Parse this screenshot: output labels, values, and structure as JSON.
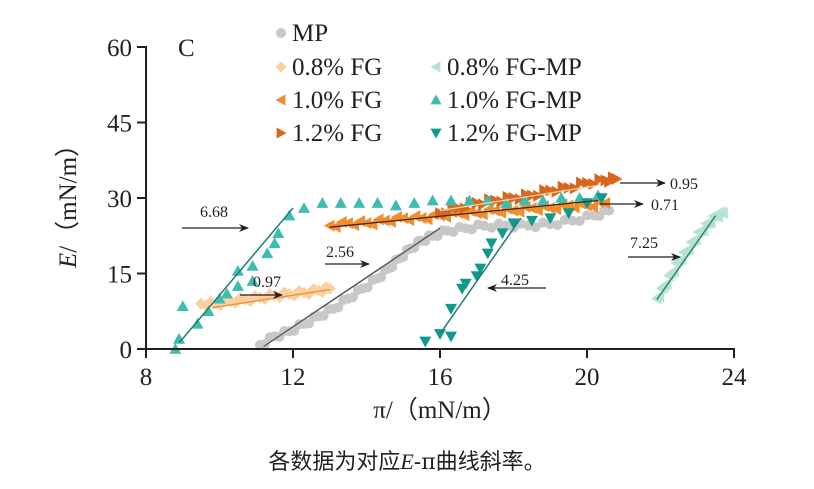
{
  "chart_data": {
    "type": "scatter",
    "panel_label": "C",
    "xlabel": "π/（mN/m）",
    "ylabel_italic": "E",
    "ylabel_rest": "/（mN/m）",
    "xlim": [
      8,
      24
    ],
    "ylim": [
      0,
      60
    ],
    "xticks": [
      8,
      12,
      16,
      20,
      24
    ],
    "yticks": [
      0,
      15,
      30,
      45,
      60
    ],
    "grid": false,
    "legend_position": "top-center",
    "legend": [
      {
        "name": "MP",
        "marker": "circle",
        "color": "#c8c8c8"
      },
      {
        "name": "0.8% FG",
        "marker": "diamond",
        "color": "#fbcf9f"
      },
      {
        "name": "1.0% FG",
        "marker": "triangle-left",
        "color": "#f28c2c"
      },
      {
        "name": "1.2% FG",
        "marker": "triangle-right",
        "color": "#d9661f"
      },
      {
        "name": "0.8% FG-MP",
        "marker": "triangle-left",
        "color": "#b3e3d3"
      },
      {
        "name": "1.0% FG-MP",
        "marker": "triangle-up",
        "color": "#3dbcb0"
      },
      {
        "name": "1.2% FG-MP",
        "marker": "triangle-down",
        "color": "#109a8c"
      }
    ],
    "series": [
      {
        "name": "MP",
        "color": "#c8c8c8",
        "marker": "circle",
        "points": [
          [
            11.1,
            0.8
          ],
          [
            11.5,
            2.5
          ],
          [
            11.9,
            3.5
          ],
          [
            12.3,
            5
          ],
          [
            12.7,
            6.5
          ],
          [
            13.1,
            8
          ],
          [
            13.5,
            10
          ],
          [
            13.9,
            12
          ],
          [
            14.3,
            14
          ],
          [
            14.6,
            16
          ],
          [
            14.9,
            18
          ],
          [
            15.2,
            20
          ],
          [
            15.5,
            21.5
          ],
          [
            15.8,
            22.5
          ],
          [
            16.2,
            23.5
          ],
          [
            16.7,
            24
          ],
          [
            17.2,
            24.5
          ],
          [
            17.8,
            24.5
          ],
          [
            18.4,
            24.5
          ],
          [
            19.0,
            24.8
          ],
          [
            19.6,
            25.5
          ],
          [
            20.2,
            26.5
          ],
          [
            20.6,
            27.5
          ]
        ]
      },
      {
        "name": "0.8% FG",
        "color": "#fbcf9f",
        "marker": "diamond",
        "points": [
          [
            9.5,
            9
          ],
          [
            9.9,
            9
          ],
          [
            10.3,
            9.5
          ],
          [
            10.7,
            9.8
          ],
          [
            11.1,
            10.2
          ],
          [
            11.5,
            10.6
          ],
          [
            11.9,
            10.9
          ],
          [
            12.3,
            11.2
          ],
          [
            12.7,
            11.6
          ],
          [
            13.0,
            12
          ]
        ]
      },
      {
        "name": "1.0% FG",
        "color": "#f28c2c",
        "marker": "triangle-left",
        "points": [
          [
            13.0,
            24.5
          ],
          [
            13.5,
            25
          ],
          [
            14.0,
            25
          ],
          [
            14.5,
            25.5
          ],
          [
            15.0,
            26
          ],
          [
            15.5,
            26
          ],
          [
            16.0,
            26.5
          ],
          [
            16.5,
            27
          ],
          [
            17.0,
            27
          ],
          [
            17.5,
            27.5
          ],
          [
            18.0,
            27.5
          ],
          [
            18.5,
            28
          ],
          [
            19.0,
            28
          ],
          [
            19.5,
            28.5
          ],
          [
            20.0,
            28.5
          ],
          [
            20.5,
            29
          ]
        ]
      },
      {
        "name": "1.2% FG",
        "color": "#d9661f",
        "marker": "triangle-right",
        "points": [
          [
            16.0,
            27
          ],
          [
            16.5,
            28
          ],
          [
            17.0,
            29
          ],
          [
            17.5,
            29.5
          ],
          [
            18.0,
            30
          ],
          [
            18.5,
            30.5
          ],
          [
            19.0,
            31.5
          ],
          [
            19.5,
            32
          ],
          [
            20.0,
            33
          ],
          [
            20.5,
            33.5
          ],
          [
            20.8,
            33.8
          ]
        ]
      },
      {
        "name": "0.8% FG-MP",
        "color": "#b3e3d3",
        "marker": "triangle-left",
        "points": [
          [
            21.9,
            10
          ],
          [
            22.1,
            12.5
          ],
          [
            22.3,
            15
          ],
          [
            22.5,
            17.5
          ],
          [
            22.7,
            19.5
          ],
          [
            22.9,
            21.5
          ],
          [
            23.1,
            23.5
          ],
          [
            23.3,
            25
          ],
          [
            23.5,
            26.5
          ],
          [
            23.7,
            27
          ]
        ]
      },
      {
        "name": "1.0% FG-MP",
        "color": "#3dbcb0",
        "marker": "triangle-up",
        "points": [
          [
            8.8,
            0
          ],
          [
            8.9,
            2
          ],
          [
            9.0,
            8.5
          ],
          [
            9.4,
            5
          ],
          [
            9.7,
            7.5
          ],
          [
            10.0,
            10
          ],
          [
            10.2,
            11
          ],
          [
            10.5,
            12.5
          ],
          [
            10.5,
            15.5
          ],
          [
            10.9,
            16.5
          ],
          [
            10.9,
            13.5
          ],
          [
            11.3,
            19
          ],
          [
            11.5,
            21
          ],
          [
            11.6,
            23
          ],
          [
            11.9,
            26.5
          ],
          [
            12.3,
            28
          ],
          [
            12.8,
            29
          ],
          [
            13.3,
            29
          ],
          [
            13.8,
            29
          ],
          [
            14.3,
            29
          ],
          [
            14.8,
            28.5
          ],
          [
            15.3,
            29
          ],
          [
            15.8,
            29.5
          ],
          [
            16.3,
            29.5
          ],
          [
            16.8,
            29.5
          ],
          [
            17.3,
            29.5
          ],
          [
            17.8,
            29
          ],
          [
            18.3,
            29.5
          ],
          [
            18.8,
            29.5
          ],
          [
            19.3,
            30
          ],
          [
            19.8,
            30
          ],
          [
            20.3,
            30.5
          ]
        ]
      },
      {
        "name": "1.2% FG-MP",
        "color": "#109a8c",
        "marker": "triangle-down",
        "points": [
          [
            15.6,
            1.5
          ],
          [
            16.0,
            3
          ],
          [
            16.3,
            2.5
          ],
          [
            16.3,
            8
          ],
          [
            16.6,
            12
          ],
          [
            16.7,
            13
          ],
          [
            17.0,
            14.5
          ],
          [
            17.1,
            16
          ],
          [
            17.3,
            19
          ],
          [
            17.4,
            21
          ],
          [
            17.7,
            23
          ],
          [
            18.0,
            25
          ],
          [
            18.5,
            25.5
          ],
          [
            19.0,
            26
          ],
          [
            19.5,
            27
          ],
          [
            20.0,
            29
          ],
          [
            20.4,
            30
          ]
        ]
      }
    ],
    "fit_lines": [
      {
        "series": "1.0% FG-MP",
        "slope_label": "6.68",
        "color": "#1f7a73",
        "from": [
          8.9,
          1.2
        ],
        "to": [
          12.0,
          28
        ]
      },
      {
        "series": "0.8% FG",
        "slope_label": "0.97",
        "color": "#f28c2c",
        "from": [
          9.8,
          8.2
        ],
        "to": [
          13.0,
          11.8
        ]
      },
      {
        "series": "MP",
        "slope_label": "2.56",
        "color": "#555555",
        "from": [
          11.2,
          0.5
        ],
        "to": [
          16.0,
          24
        ]
      },
      {
        "series": "1.2% FG-MP",
        "slope_label": "4.25",
        "color": "#1f7a73",
        "from": [
          16.0,
          3
        ],
        "to": [
          18.2,
          26
        ]
      },
      {
        "series": "1.2% FG",
        "slope_label": "0.95",
        "color": "#fbcf9f",
        "from": [
          16.0,
          27.5
        ],
        "to": [
          20.3,
          32.5
        ]
      },
      {
        "series": "1.0% FG",
        "slope_label": "0.71",
        "color": "#3a2a1a",
        "from": [
          13.0,
          24.2
        ],
        "to": [
          20.3,
          29.5
        ]
      },
      {
        "series": "0.8% FG-MP",
        "slope_label": "7.25",
        "color": "#1f7a73",
        "from": [
          21.9,
          9.8
        ],
        "to": [
          23.5,
          26.5
        ]
      }
    ],
    "annotations": [
      {
        "text": "6.68",
        "arrow": "right"
      },
      {
        "text": "0.97",
        "arrow": "right"
      },
      {
        "text": "2.56",
        "arrow": "right"
      },
      {
        "text": "4.25",
        "arrow": "left"
      },
      {
        "text": "0.95",
        "arrow": "right"
      },
      {
        "text": "0.71",
        "arrow": "right"
      },
      {
        "text": "7.25",
        "arrow": "right"
      }
    ]
  },
  "caption": {
    "prefix": "各数据为对应",
    "italic": "E",
    "suffix": "-π曲线斜率。"
  }
}
